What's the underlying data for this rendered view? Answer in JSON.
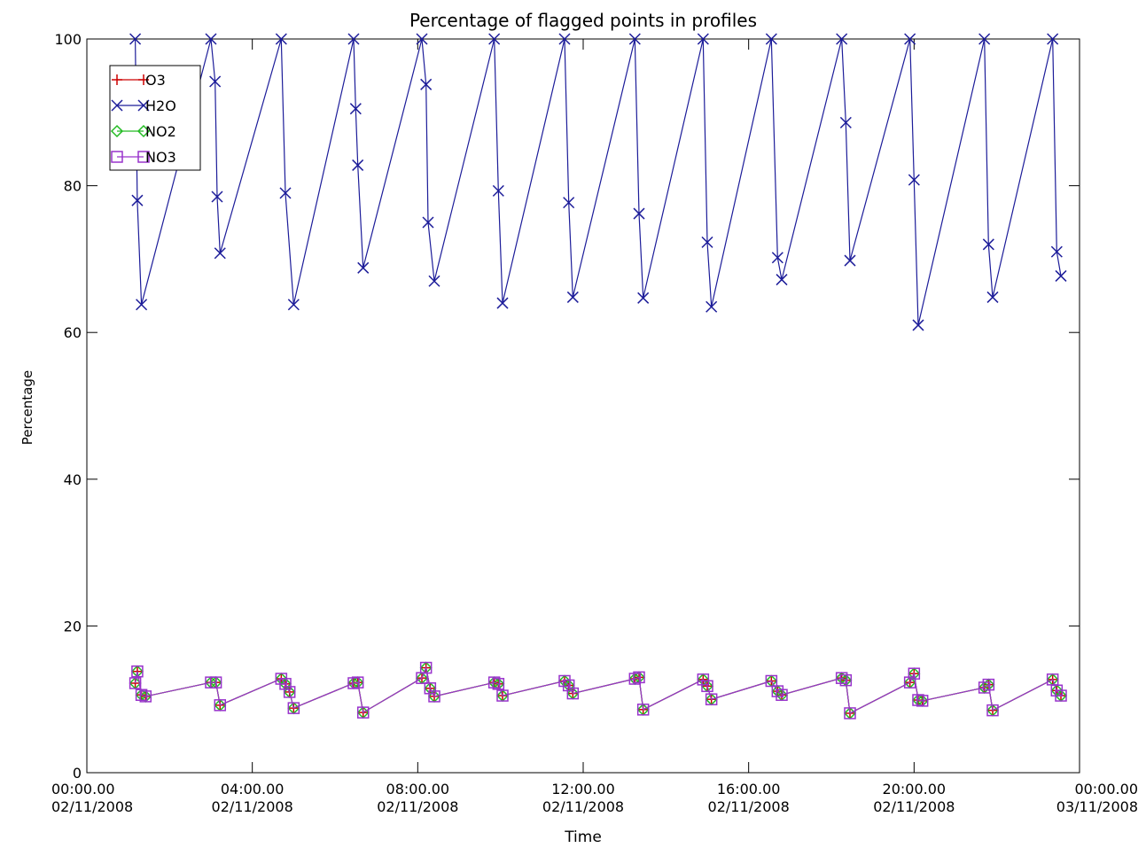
{
  "chart_data": {
    "type": "line",
    "title": "Percentage of flagged points in profiles",
    "xlabel": "Time",
    "ylabel": "Percentage",
    "ylim": [
      0,
      100
    ],
    "xlim": [
      "00:00.00 02/11/2008",
      "00:00.00 03/11/2008"
    ],
    "x_ticks": [
      {
        "time": "00:00.00",
        "date": "02/11/2008"
      },
      {
        "time": "04:00.00",
        "date": "02/11/2008"
      },
      {
        "time": "08:00.00",
        "date": "02/11/2008"
      },
      {
        "time": "12:00.00",
        "date": "02/11/2008"
      },
      {
        "time": "16:00.00",
        "date": "02/11/2008"
      },
      {
        "time": "20:00.00",
        "date": "02/11/2008"
      },
      {
        "time": "00:00.00",
        "date": "03/11/2008"
      }
    ],
    "y_ticks": [
      "0",
      "20",
      "40",
      "60",
      "80",
      "100"
    ],
    "grid": false,
    "legend_position": "top-left",
    "x_units": "hours since 00:00.00 02/11/2008",
    "series": [
      {
        "name": "O3",
        "color": "#cc0000",
        "marker": "plus",
        "points": [
          [
            1.17,
            12.2
          ],
          [
            1.22,
            13.8
          ],
          [
            1.32,
            10.6
          ],
          [
            1.42,
            10.4
          ],
          [
            3.0,
            12.3
          ],
          [
            3.12,
            12.3
          ],
          [
            3.22,
            9.2
          ],
          [
            4.7,
            12.8
          ],
          [
            4.8,
            12.1
          ],
          [
            4.9,
            11.0
          ],
          [
            5.0,
            8.8
          ],
          [
            6.45,
            12.2
          ],
          [
            6.55,
            12.3
          ],
          [
            6.68,
            8.2
          ],
          [
            8.1,
            12.9
          ],
          [
            8.2,
            14.3
          ],
          [
            8.3,
            11.5
          ],
          [
            8.4,
            10.4
          ],
          [
            9.85,
            12.3
          ],
          [
            9.95,
            12.1
          ],
          [
            10.05,
            10.5
          ],
          [
            11.55,
            12.5
          ],
          [
            11.65,
            11.9
          ],
          [
            11.75,
            10.8
          ],
          [
            13.25,
            12.8
          ],
          [
            13.35,
            13.0
          ],
          [
            13.45,
            8.6
          ],
          [
            14.9,
            12.7
          ],
          [
            15.0,
            11.8
          ],
          [
            15.1,
            10.0
          ],
          [
            16.55,
            12.5
          ],
          [
            16.7,
            11.1
          ],
          [
            16.8,
            10.6
          ],
          [
            18.25,
            12.9
          ],
          [
            18.35,
            12.6
          ],
          [
            18.45,
            8.1
          ],
          [
            19.9,
            12.3
          ],
          [
            20.0,
            13.5
          ],
          [
            20.1,
            9.9
          ],
          [
            20.2,
            9.8
          ],
          [
            21.7,
            11.6
          ],
          [
            21.8,
            12.0
          ],
          [
            21.9,
            8.5
          ],
          [
            23.35,
            12.7
          ],
          [
            23.45,
            11.2
          ],
          [
            23.55,
            10.5
          ]
        ]
      },
      {
        "name": "H2O",
        "color": "#1c1c99",
        "marker": "x",
        "points": [
          [
            1.17,
            100
          ],
          [
            1.22,
            78.0
          ],
          [
            1.32,
            63.8
          ],
          [
            3.0,
            100
          ],
          [
            3.1,
            94.2
          ],
          [
            3.15,
            78.5
          ],
          [
            3.22,
            70.8
          ],
          [
            4.7,
            100
          ],
          [
            4.8,
            79.0
          ],
          [
            5.0,
            63.8
          ],
          [
            6.45,
            100
          ],
          [
            6.5,
            90.5
          ],
          [
            6.55,
            82.8
          ],
          [
            6.68,
            68.8
          ],
          [
            8.1,
            100
          ],
          [
            8.2,
            93.8
          ],
          [
            8.25,
            75.0
          ],
          [
            8.4,
            67.0
          ],
          [
            9.85,
            100
          ],
          [
            9.95,
            79.3
          ],
          [
            10.05,
            64.0
          ],
          [
            11.55,
            100
          ],
          [
            11.65,
            77.7
          ],
          [
            11.75,
            64.8
          ],
          [
            13.25,
            100
          ],
          [
            13.35,
            76.2
          ],
          [
            13.45,
            64.7
          ],
          [
            14.9,
            100
          ],
          [
            15.0,
            72.3
          ],
          [
            15.1,
            63.5
          ],
          [
            16.55,
            100
          ],
          [
            16.7,
            70.2
          ],
          [
            16.8,
            67.2
          ],
          [
            18.25,
            100
          ],
          [
            18.35,
            88.6
          ],
          [
            18.45,
            69.8
          ],
          [
            19.9,
            100
          ],
          [
            20.0,
            80.8
          ],
          [
            20.1,
            61.0
          ],
          [
            21.7,
            100
          ],
          [
            21.8,
            72.0
          ],
          [
            21.9,
            64.8
          ],
          [
            23.35,
            100
          ],
          [
            23.45,
            71.0
          ],
          [
            23.55,
            67.7
          ]
        ]
      },
      {
        "name": "NO2",
        "color": "#22bb22",
        "marker": "diamond",
        "points": [
          [
            1.17,
            12.2
          ],
          [
            1.22,
            13.8
          ],
          [
            1.32,
            10.6
          ],
          [
            1.42,
            10.4
          ],
          [
            3.0,
            12.3
          ],
          [
            3.12,
            12.3
          ],
          [
            3.22,
            9.2
          ],
          [
            4.7,
            12.8
          ],
          [
            4.8,
            12.1
          ],
          [
            4.9,
            11.0
          ],
          [
            5.0,
            8.8
          ],
          [
            6.45,
            12.2
          ],
          [
            6.55,
            12.3
          ],
          [
            6.68,
            8.2
          ],
          [
            8.1,
            12.9
          ],
          [
            8.2,
            14.3
          ],
          [
            8.3,
            11.5
          ],
          [
            8.4,
            10.4
          ],
          [
            9.85,
            12.3
          ],
          [
            9.95,
            12.1
          ],
          [
            10.05,
            10.5
          ],
          [
            11.55,
            12.5
          ],
          [
            11.65,
            11.9
          ],
          [
            11.75,
            10.8
          ],
          [
            13.25,
            12.8
          ],
          [
            13.35,
            13.0
          ],
          [
            13.45,
            8.6
          ],
          [
            14.9,
            12.7
          ],
          [
            15.0,
            11.8
          ],
          [
            15.1,
            10.0
          ],
          [
            16.55,
            12.5
          ],
          [
            16.7,
            11.1
          ],
          [
            16.8,
            10.6
          ],
          [
            18.25,
            12.9
          ],
          [
            18.35,
            12.6
          ],
          [
            18.45,
            8.1
          ],
          [
            19.9,
            12.3
          ],
          [
            20.0,
            13.5
          ],
          [
            20.1,
            9.9
          ],
          [
            20.2,
            9.8
          ],
          [
            21.7,
            11.6
          ],
          [
            21.8,
            12.0
          ],
          [
            21.9,
            8.5
          ],
          [
            23.35,
            12.7
          ],
          [
            23.45,
            11.2
          ],
          [
            23.55,
            10.5
          ]
        ]
      },
      {
        "name": "NO3",
        "color": "#9933cc",
        "marker": "square",
        "points": [
          [
            1.17,
            12.2
          ],
          [
            1.22,
            13.8
          ],
          [
            1.32,
            10.6
          ],
          [
            1.42,
            10.4
          ],
          [
            3.0,
            12.3
          ],
          [
            3.12,
            12.3
          ],
          [
            3.22,
            9.2
          ],
          [
            4.7,
            12.8
          ],
          [
            4.8,
            12.1
          ],
          [
            4.9,
            11.0
          ],
          [
            5.0,
            8.8
          ],
          [
            6.45,
            12.2
          ],
          [
            6.55,
            12.3
          ],
          [
            6.68,
            8.2
          ],
          [
            8.1,
            12.9
          ],
          [
            8.2,
            14.3
          ],
          [
            8.3,
            11.5
          ],
          [
            8.4,
            10.4
          ],
          [
            9.85,
            12.3
          ],
          [
            9.95,
            12.1
          ],
          [
            10.05,
            10.5
          ],
          [
            11.55,
            12.5
          ],
          [
            11.65,
            11.9
          ],
          [
            11.75,
            10.8
          ],
          [
            13.25,
            12.8
          ],
          [
            13.35,
            13.0
          ],
          [
            13.45,
            8.6
          ],
          [
            14.9,
            12.7
          ],
          [
            15.0,
            11.8
          ],
          [
            15.1,
            10.0
          ],
          [
            16.55,
            12.5
          ],
          [
            16.7,
            11.1
          ],
          [
            16.8,
            10.6
          ],
          [
            18.25,
            12.9
          ],
          [
            18.35,
            12.6
          ],
          [
            18.45,
            8.1
          ],
          [
            19.9,
            12.3
          ],
          [
            20.0,
            13.5
          ],
          [
            20.1,
            9.9
          ],
          [
            20.2,
            9.8
          ],
          [
            21.7,
            11.6
          ],
          [
            21.8,
            12.0
          ],
          [
            21.9,
            8.5
          ],
          [
            23.35,
            12.7
          ],
          [
            23.45,
            11.2
          ],
          [
            23.55,
            10.5
          ]
        ]
      }
    ]
  }
}
